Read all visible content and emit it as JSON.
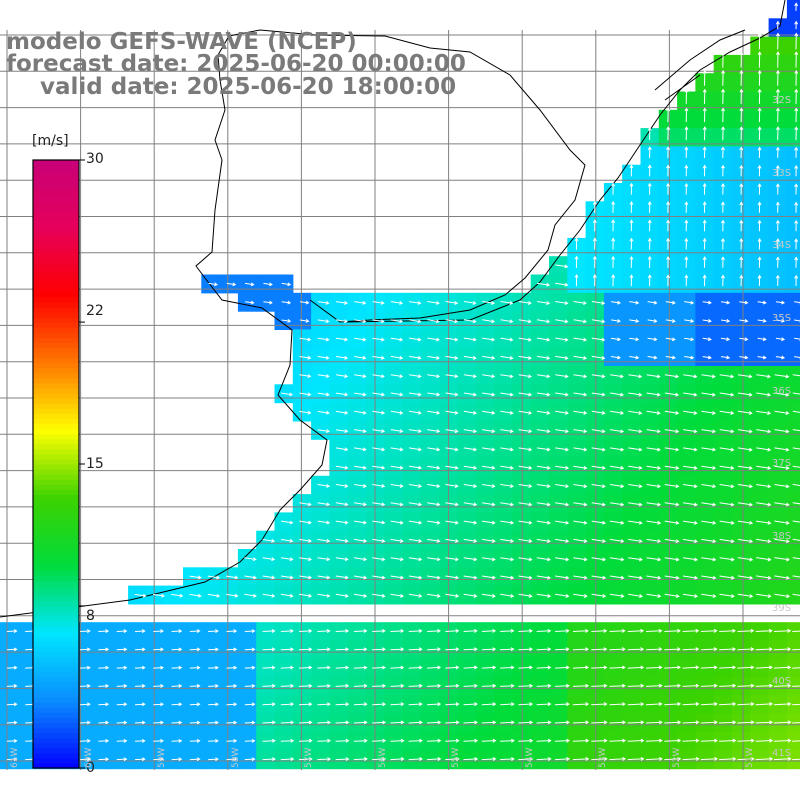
{
  "title": {
    "line1": "modelo GEFS-WAVE (NCEP)",
    "line2": "forecast date: 2025-06-20 00:00:00",
    "line3": "valid date: 2025-06-20 18:00:00"
  },
  "colorbar": {
    "unit": "[m/s]",
    "ticks": [
      "30",
      "22",
      "15",
      "8",
      "0"
    ],
    "min": 0,
    "max": 30,
    "colors": [
      "#0000ff",
      "#0a8cff",
      "#00e6ff",
      "#00dc3c",
      "#3cd200",
      "#ffff00",
      "#ff7800",
      "#ff0000",
      "#e6005a",
      "#c80078"
    ]
  },
  "map": {
    "land_color": "#ffffff",
    "coast_color": "#000000",
    "grid_color": "#808080",
    "arrow_color": "#ffffff",
    "lat_labels": [
      "32S",
      "33S",
      "34S",
      "35S",
      "36S",
      "37S",
      "38S",
      "39S",
      "40S",
      "41S"
    ],
    "lon_labels": [
      "61W",
      "60W",
      "59W",
      "58W",
      "57W",
      "56W",
      "55W",
      "54W",
      "53W",
      "52W",
      "51W"
    ]
  }
}
